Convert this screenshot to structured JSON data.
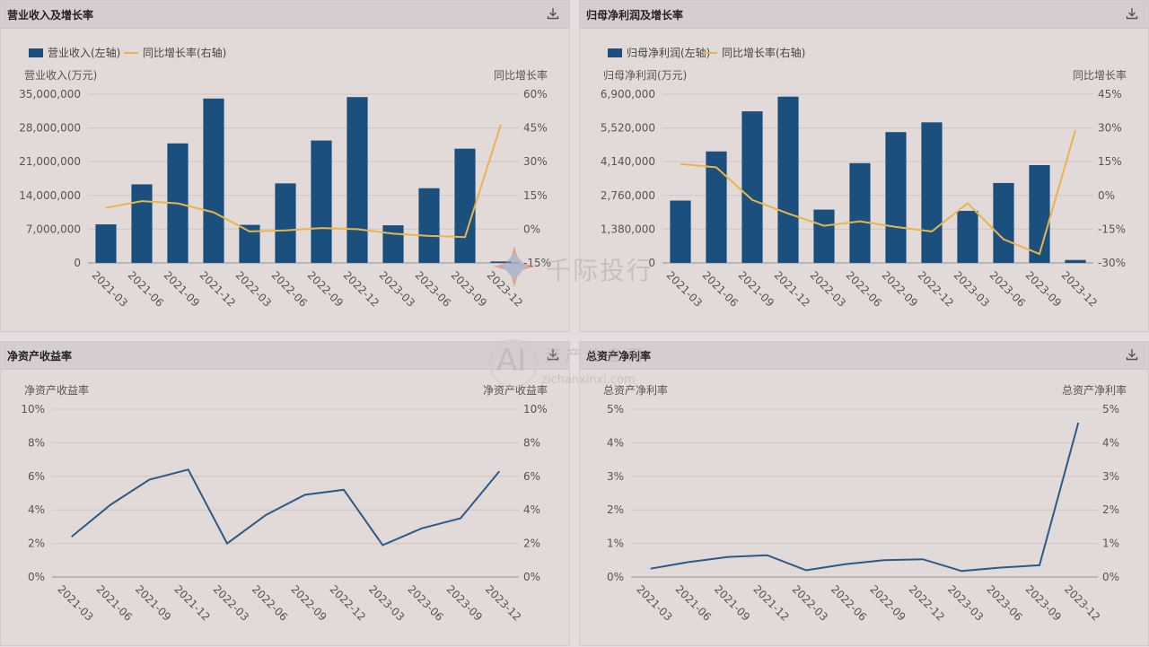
{
  "panels": {
    "p1": {
      "title": "营业收入及增长率",
      "download_label": "download"
    },
    "p2": {
      "title": "归母净利润及增长率",
      "download_label": "download"
    },
    "p3": {
      "title": "净资产收益率",
      "download_label": "download"
    },
    "p4": {
      "title": "总资产净利率",
      "download_label": "download"
    }
  },
  "watermark": {
    "brand": "千际投行",
    "site_cn": "资产信息网",
    "site_url": "zichanxinxi.com",
    "logo_letters": "AI"
  },
  "colors": {
    "bar": "#1b4f7e",
    "growth_line": "#e8b54a",
    "line": "#2d5a86",
    "grid": "#cfc6c6",
    "axis_text": "#555555"
  },
  "chart_data": [
    {
      "id": "p1",
      "type": "bar",
      "categories": [
        "2021-03",
        "2021-06",
        "2021-09",
        "2021-12",
        "2022-03",
        "2022-06",
        "2022-09",
        "2022-12",
        "2023-03",
        "2023-06",
        "2023-09",
        "2023-12"
      ],
      "series": [
        {
          "name": "营业收入(左轴)",
          "type": "bar",
          "axis": "left",
          "values": [
            8000000,
            16300000,
            24800000,
            34100000,
            7900000,
            16500000,
            25400000,
            34400000,
            7800000,
            15500000,
            23700000,
            300000
          ]
        },
        {
          "name": "同比增长率(右轴)",
          "type": "line",
          "axis": "right",
          "values": [
            9.5,
            12.5,
            11.5,
            7.5,
            -1.0,
            -0.5,
            0.5,
            0.0,
            -2.0,
            -3.0,
            -3.5,
            46.5
          ]
        }
      ],
      "ylabel_left": "营业收入(万元)",
      "ylabel_right": "同比增长率",
      "left_ticks": [
        "0",
        "7,000,000",
        "14,000,000",
        "21,000,000",
        "28,000,000",
        "35,000,000"
      ],
      "right_ticks": [
        "-15%",
        "0%",
        "15%",
        "30%",
        "45%",
        "60%"
      ],
      "ylim_left": [
        0,
        35000000
      ],
      "ylim_right": [
        -15,
        60
      ],
      "legend_position": "top-left",
      "grid": true
    },
    {
      "id": "p2",
      "type": "bar",
      "categories": [
        "2021-03",
        "2021-06",
        "2021-09",
        "2021-12",
        "2022-03",
        "2022-06",
        "2022-09",
        "2022-12",
        "2023-03",
        "2023-06",
        "2023-09",
        "2023-12"
      ],
      "series": [
        {
          "name": "归母净利润(左轴)",
          "type": "bar",
          "axis": "left",
          "values": [
            2550000,
            4560000,
            6200000,
            6800000,
            2180000,
            4080000,
            5350000,
            5750000,
            2130000,
            3270000,
            4000000,
            120000
          ]
        },
        {
          "name": "同比增长率(右轴)",
          "type": "line",
          "axis": "right",
          "values": [
            14.0,
            12.5,
            -2.0,
            -8.0,
            -13.5,
            -11.5,
            -14.0,
            -16.0,
            -3.5,
            -19.5,
            -26.0,
            29.0
          ]
        }
      ],
      "ylabel_left": "归母净利润(万元)",
      "ylabel_right": "同比增长率",
      "left_ticks": [
        "0",
        "1,380,000",
        "2,760,000",
        "4,140,000",
        "5,520,000",
        "6,900,000"
      ],
      "right_ticks": [
        "-30%",
        "-15%",
        "0%",
        "15%",
        "30%",
        "45%"
      ],
      "ylim_left": [
        0,
        6900000
      ],
      "ylim_right": [
        -30,
        45
      ],
      "legend_position": "top-left",
      "grid": true
    },
    {
      "id": "p3",
      "type": "line",
      "categories": [
        "2021-03",
        "2021-06",
        "2021-09",
        "2021-12",
        "2022-03",
        "2022-06",
        "2022-09",
        "2022-12",
        "2023-03",
        "2023-06",
        "2023-09",
        "2023-12"
      ],
      "series": [
        {
          "name": "净资产收益率",
          "type": "line",
          "axis": "left",
          "values": [
            2.4,
            4.3,
            5.8,
            6.4,
            2.0,
            3.7,
            4.9,
            5.2,
            1.9,
            2.9,
            3.5,
            6.3
          ]
        }
      ],
      "ylabel_left": "净资产收益率",
      "ylabel_right": "净资产收益率",
      "left_ticks": [
        "0%",
        "2%",
        "4%",
        "6%",
        "8%",
        "10%"
      ],
      "right_ticks": [
        "0%",
        "2%",
        "4%",
        "6%",
        "8%",
        "10%"
      ],
      "ylim_left": [
        0,
        10
      ],
      "ylim_right": [
        0,
        10
      ],
      "grid": true
    },
    {
      "id": "p4",
      "type": "line",
      "categories": [
        "2021-03",
        "2021-06",
        "2021-09",
        "2021-12",
        "2022-03",
        "2022-06",
        "2022-09",
        "2022-12",
        "2023-03",
        "2023-06",
        "2023-09",
        "2023-12"
      ],
      "series": [
        {
          "name": "总资产净利率",
          "type": "line",
          "axis": "left",
          "values": [
            0.25,
            0.45,
            0.6,
            0.65,
            0.2,
            0.38,
            0.5,
            0.53,
            0.18,
            0.28,
            0.35,
            4.6
          ]
        }
      ],
      "ylabel_left": "总资产净利率",
      "ylabel_right": "总资产净利率",
      "left_ticks": [
        "0%",
        "1%",
        "2%",
        "3%",
        "4%",
        "5%"
      ],
      "right_ticks": [
        "0%",
        "1%",
        "2%",
        "3%",
        "4%",
        "5%"
      ],
      "ylim_left": [
        0,
        5
      ],
      "ylim_right": [
        0,
        5
      ],
      "grid": true
    }
  ]
}
